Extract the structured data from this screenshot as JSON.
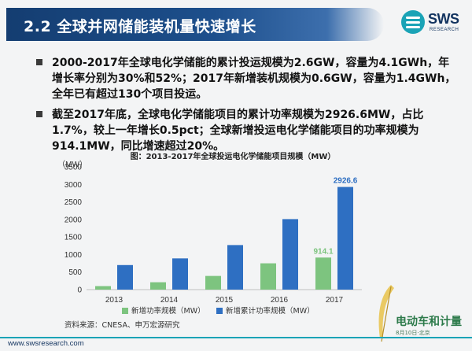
{
  "slide": {
    "title": "2.2 全球并网储能装机量快速增长",
    "logo": {
      "name": "SWS",
      "sub": "RESEARCH"
    },
    "bullets": [
      "2000-2017年全球电化学储能的累计投运规模为2.6GW，容量为4.1GWh，年增长率分别为30%和52%；2017年新增装机规模为0.6GW，容量为1.4GWh，全年已有超过130个项目投运。",
      "截至2017年底，全球电化学储能项目的累计功率规模为2926.6MW，占比1.7%，较上一年增长0.5pct；全球新增投运电化学储能项目的功率规模为914.1MW，同比增速超过20%。"
    ],
    "source": "资料来源：CNESA、申万宏源研究",
    "footer_url": "www.swsresearch.com",
    "watermark": {
      "text": "电动车和计量",
      "sub": "8月10日·北京"
    }
  },
  "chart_data": {
    "type": "bar",
    "title": "图：2013-2017年全球投运电化学储能项目规模（MW）",
    "ylabel": "（MW）",
    "categories": [
      "2013",
      "2014",
      "2015",
      "2016",
      "2017"
    ],
    "series": [
      {
        "name": "新增功率规模（MW）",
        "color": "#7dc47f",
        "values": [
          100,
          210,
          390,
          750,
          914.1
        ]
      },
      {
        "name": "新增累计功率规模（MW）",
        "color": "#2e6fc2",
        "values": [
          700,
          890,
          1270,
          2010,
          2926.6
        ]
      }
    ],
    "data_labels": [
      {
        "series": 0,
        "index": 4,
        "text": "914.1"
      },
      {
        "series": 1,
        "index": 4,
        "text": "2926.6"
      }
    ],
    "yticks": [
      0,
      500,
      1000,
      1500,
      2000,
      2500,
      3000,
      3500
    ],
    "ylim": [
      0,
      3500
    ],
    "legend": "bottom",
    "grid": false
  }
}
